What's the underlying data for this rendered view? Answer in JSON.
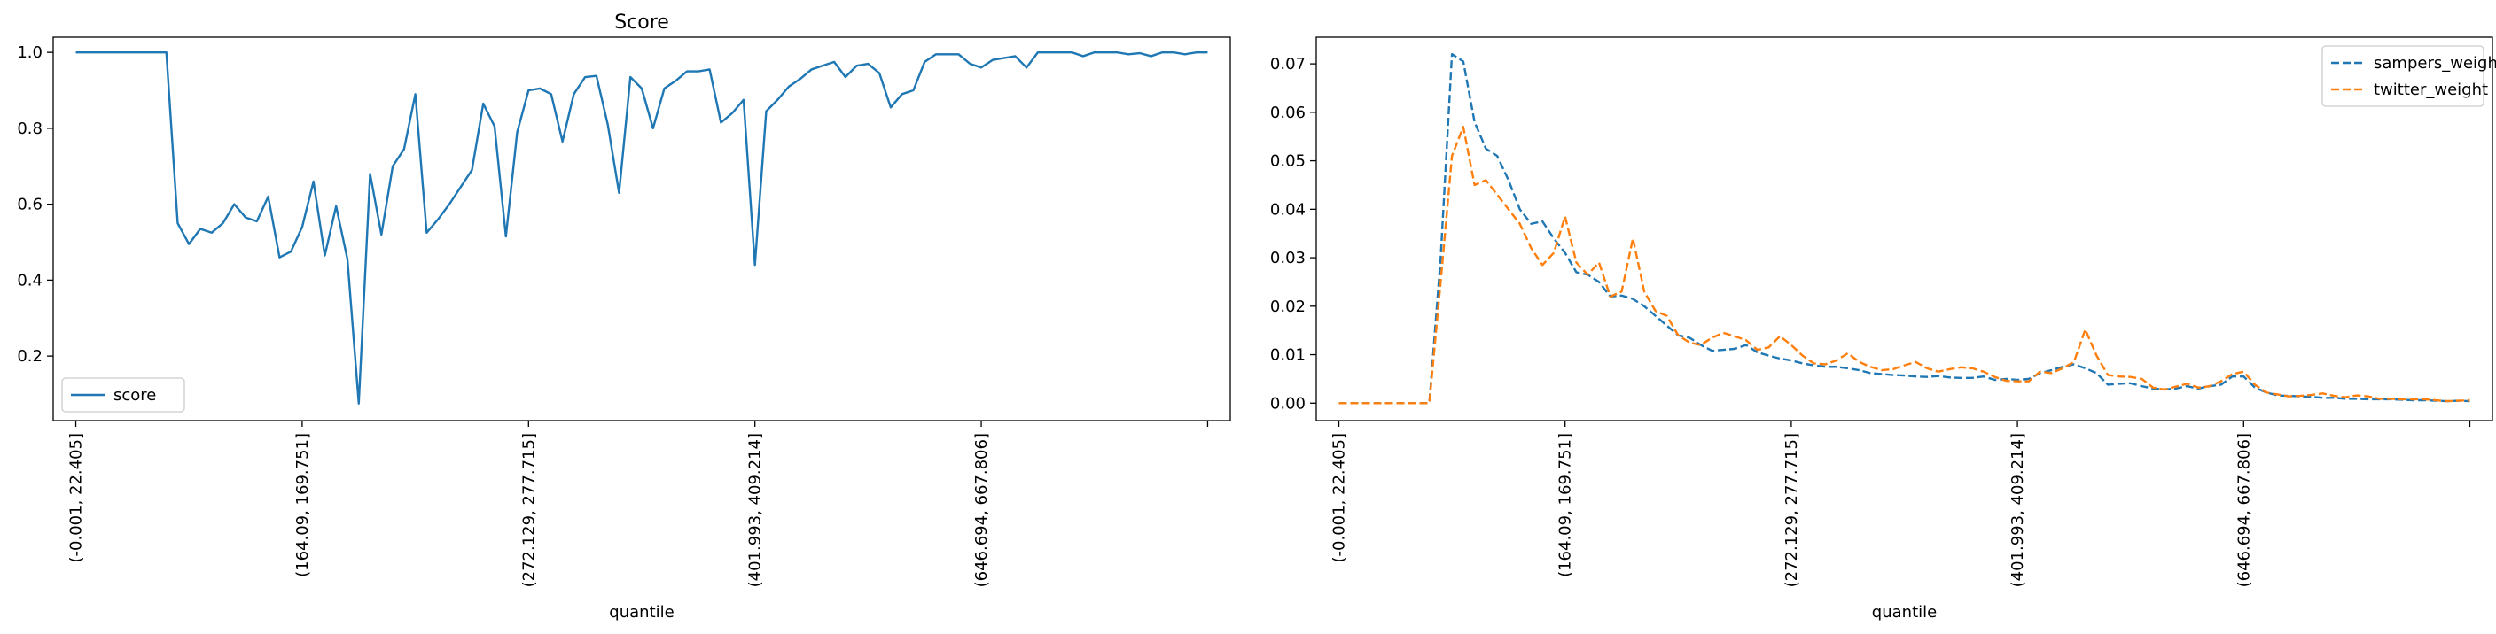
{
  "chart_data": [
    {
      "type": "line",
      "title": "Score",
      "xlabel": "quantile",
      "ylabel": "",
      "ylim": [
        0.03,
        1.04
      ],
      "xlim": [
        -2,
        102
      ],
      "grid": false,
      "legend_position": "lower-left",
      "x_ticks": [
        {
          "index": 0,
          "label": "(-0.001, 22.405]"
        },
        {
          "index": 20,
          "label": "(164.09, 169.751]"
        },
        {
          "index": 40,
          "label": "(272.129, 277.715]"
        },
        {
          "index": 60,
          "label": "(401.993, 409.214]"
        },
        {
          "index": 80,
          "label": "(646.694, 667.806]"
        },
        {
          "index": 100,
          "label": ""
        }
      ],
      "y_ticks": [
        {
          "value": 0.2,
          "label": "0.2"
        },
        {
          "value": 0.4,
          "label": "0.4"
        },
        {
          "value": 0.6,
          "label": "0.6"
        },
        {
          "value": 0.8,
          "label": "0.8"
        },
        {
          "value": 1.0,
          "label": "1.0"
        }
      ],
      "series": [
        {
          "name": "score",
          "color": "#1f77b4",
          "dashed": false,
          "values": [
            1.0,
            1.0,
            1.0,
            1.0,
            1.0,
            1.0,
            1.0,
            1.0,
            1.0,
            0.55,
            0.495,
            0.535,
            0.525,
            0.55,
            0.6,
            0.565,
            0.555,
            0.62,
            0.46,
            0.475,
            0.54,
            0.66,
            0.465,
            0.595,
            0.455,
            0.075,
            0.68,
            0.52,
            0.7,
            0.745,
            0.89,
            0.525,
            0.56,
            0.6,
            0.645,
            0.69,
            0.865,
            0.805,
            0.515,
            0.79,
            0.9,
            0.905,
            0.89,
            0.765,
            0.89,
            0.935,
            0.938,
            0.81,
            0.63,
            0.935,
            0.905,
            0.8,
            0.905,
            0.925,
            0.95,
            0.95,
            0.955,
            0.815,
            0.84,
            0.875,
            0.44,
            0.845,
            0.875,
            0.91,
            0.93,
            0.955,
            0.965,
            0.975,
            0.935,
            0.965,
            0.97,
            0.945,
            0.855,
            0.89,
            0.9,
            0.975,
            0.995,
            0.995,
            0.995,
            0.97,
            0.96,
            0.98,
            0.985,
            0.99,
            0.96,
            1.0,
            1.0,
            1.0,
            1.0,
            0.99,
            1.0,
            1.0,
            1.0,
            0.995,
            0.998,
            0.99,
            1.0,
            1.0,
            0.995,
            1.0,
            1.0
          ]
        }
      ]
    },
    {
      "type": "line",
      "title": "",
      "xlabel": "quantile",
      "ylabel": "",
      "ylim": [
        -0.0036,
        0.0755
      ],
      "xlim": [
        -2,
        102
      ],
      "grid": false,
      "legend_position": "upper-right",
      "x_ticks": [
        {
          "index": 0,
          "label": "(-0.001, 22.405]"
        },
        {
          "index": 20,
          "label": "(164.09, 169.751]"
        },
        {
          "index": 40,
          "label": "(272.129, 277.715]"
        },
        {
          "index": 60,
          "label": "(401.993, 409.214]"
        },
        {
          "index": 80,
          "label": "(646.694, 667.806]"
        },
        {
          "index": 100,
          "label": ""
        }
      ],
      "y_ticks": [
        {
          "value": 0.0,
          "label": "0.00"
        },
        {
          "value": 0.01,
          "label": "0.01"
        },
        {
          "value": 0.02,
          "label": "0.02"
        },
        {
          "value": 0.03,
          "label": "0.03"
        },
        {
          "value": 0.04,
          "label": "0.04"
        },
        {
          "value": 0.05,
          "label": "0.05"
        },
        {
          "value": 0.06,
          "label": "0.06"
        },
        {
          "value": 0.07,
          "label": "0.07"
        }
      ],
      "series": [
        {
          "name": "sampers_weight",
          "color": "#1f77b4",
          "dashed": true,
          "values": [
            0,
            0,
            0,
            0,
            0,
            0,
            0,
            0,
            0.0,
            0.03,
            0.072,
            0.0705,
            0.058,
            0.0525,
            0.051,
            0.046,
            0.04,
            0.037,
            0.0375,
            0.034,
            0.031,
            0.027,
            0.0265,
            0.025,
            0.022,
            0.0222,
            0.0215,
            0.02,
            0.018,
            0.016,
            0.014,
            0.0135,
            0.012,
            0.0108,
            0.011,
            0.0112,
            0.012,
            0.0105,
            0.0098,
            0.0092,
            0.0088,
            0.0082,
            0.0078,
            0.0075,
            0.0075,
            0.0072,
            0.0068,
            0.0062,
            0.006,
            0.0058,
            0.0057,
            0.0055,
            0.0054,
            0.0056,
            0.0053,
            0.0052,
            0.0052,
            0.0055,
            0.0048,
            0.005,
            0.0048,
            0.005,
            0.0062,
            0.0068,
            0.0075,
            0.008,
            0.0072,
            0.0062,
            0.0038,
            0.004,
            0.0041,
            0.0035,
            0.003,
            0.0028,
            0.003,
            0.0035,
            0.003,
            0.0035,
            0.0038,
            0.0055,
            0.0055,
            0.0032,
            0.0022,
            0.0016,
            0.0015,
            0.0014,
            0.0013,
            0.0011,
            0.0011,
            0.0009,
            0.0009,
            0.0008,
            0.0008,
            0.0008,
            0.0007,
            0.0006,
            0.0006,
            0.0005,
            0.0004,
            0.0005,
            0.0004
          ]
        },
        {
          "name": "twitter_weight",
          "color": "#ff7f0e",
          "dashed": true,
          "values": [
            0,
            0,
            0,
            0,
            0,
            0,
            0,
            0,
            0.0,
            0.025,
            0.051,
            0.057,
            0.045,
            0.046,
            0.043,
            0.04,
            0.037,
            0.032,
            0.0285,
            0.031,
            0.0385,
            0.029,
            0.0265,
            0.029,
            0.022,
            0.023,
            0.034,
            0.023,
            0.019,
            0.018,
            0.014,
            0.0125,
            0.012,
            0.0135,
            0.0145,
            0.0138,
            0.013,
            0.011,
            0.0115,
            0.0138,
            0.012,
            0.0098,
            0.0082,
            0.008,
            0.0088,
            0.0103,
            0.0085,
            0.0075,
            0.0068,
            0.007,
            0.0078,
            0.0085,
            0.0072,
            0.0065,
            0.007,
            0.0074,
            0.0072,
            0.0065,
            0.0054,
            0.0046,
            0.0045,
            0.0045,
            0.0065,
            0.0062,
            0.0072,
            0.0085,
            0.0152,
            0.0098,
            0.0058,
            0.0055,
            0.0054,
            0.005,
            0.0032,
            0.0028,
            0.0034,
            0.004,
            0.0032,
            0.0035,
            0.0045,
            0.006,
            0.0065,
            0.0038,
            0.0022,
            0.0018,
            0.0014,
            0.0015,
            0.0017,
            0.002,
            0.0015,
            0.0012,
            0.0016,
            0.0014,
            0.0009,
            0.0009,
            0.0008,
            0.0008,
            0.0008,
            0.0006,
            0.0004,
            0.0005,
            0.0006
          ]
        }
      ]
    }
  ]
}
